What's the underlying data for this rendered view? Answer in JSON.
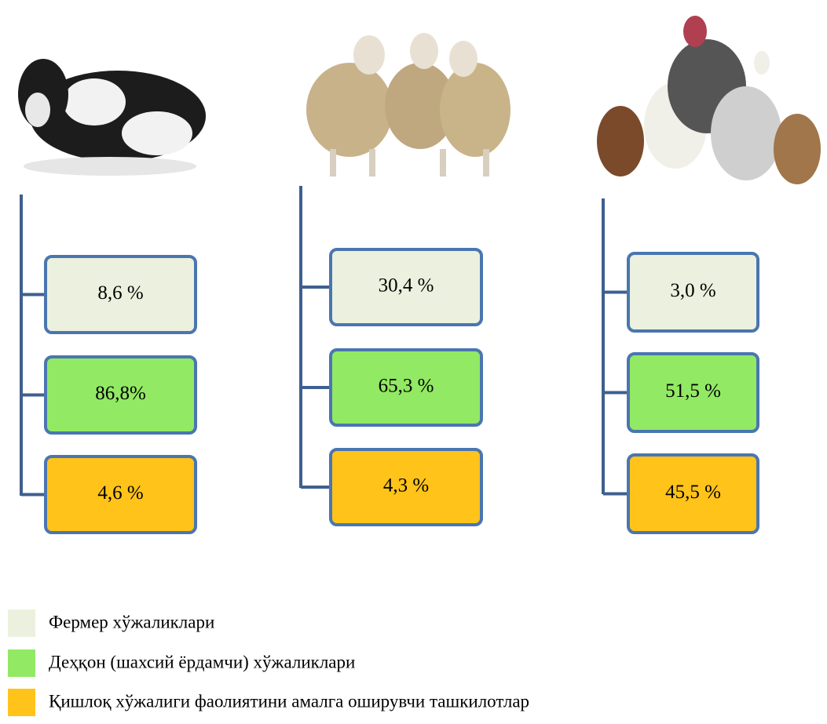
{
  "columns": [
    {
      "boxes": [
        "8,6 %",
        "86,8%",
        "4,6 %"
      ]
    },
    {
      "boxes": [
        "30,4 %",
        "65,3 %",
        "4,3 %"
      ]
    },
    {
      "boxes": [
        "3,0 %",
        "51,5 %",
        "45,5 %"
      ]
    }
  ],
  "legend": [
    "Фермер хўжаликлари",
    "Деҳқон (шахсий ёрдамчи) хўжаликлари",
    "Қишлоқ хўжалиги фаолиятини амалга оширувчи ташкилотлар"
  ]
}
